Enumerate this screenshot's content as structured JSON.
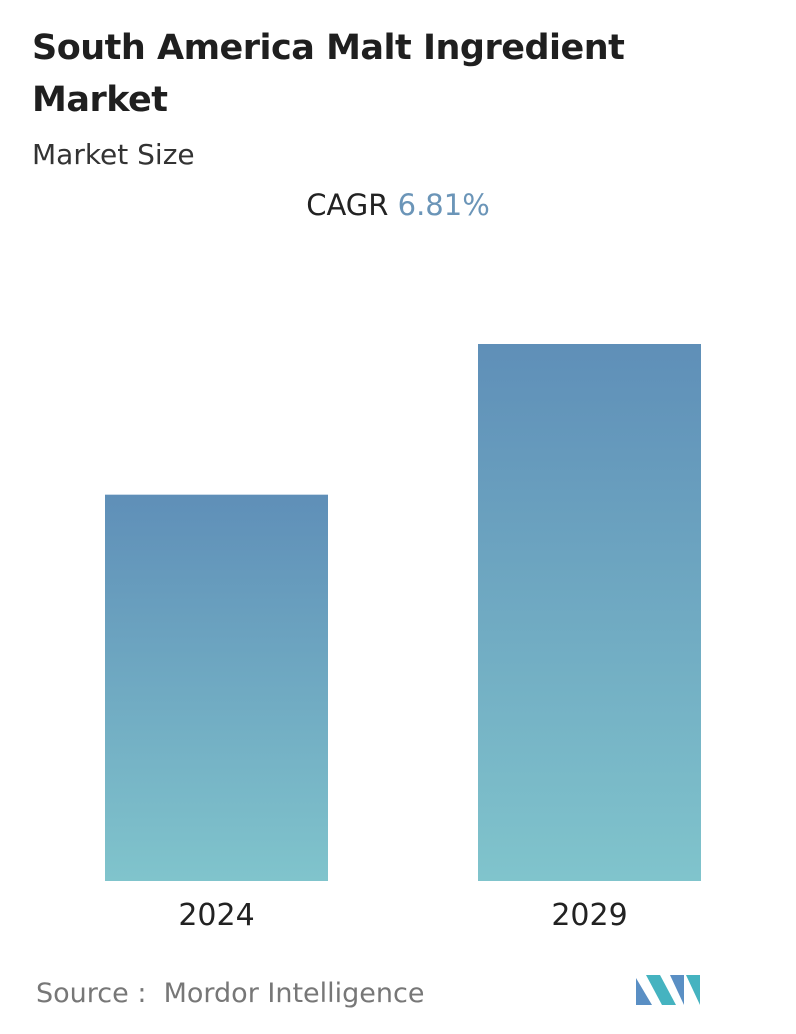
{
  "chart_data": {
    "type": "bar",
    "title": "South America Malt Ingredient Market",
    "subtitle": "Market Size",
    "cagr_label": "CAGR",
    "cagr_value": "6.81%",
    "categories": [
      "2024",
      "2029"
    ],
    "values": [
      1,
      1.39
    ],
    "ylim": [
      0,
      1.39
    ],
    "color_top": "#5f8fb8",
    "color_bottom": "#80c4cc",
    "source_label": "Source :",
    "source": "Mordor Intelligence"
  }
}
